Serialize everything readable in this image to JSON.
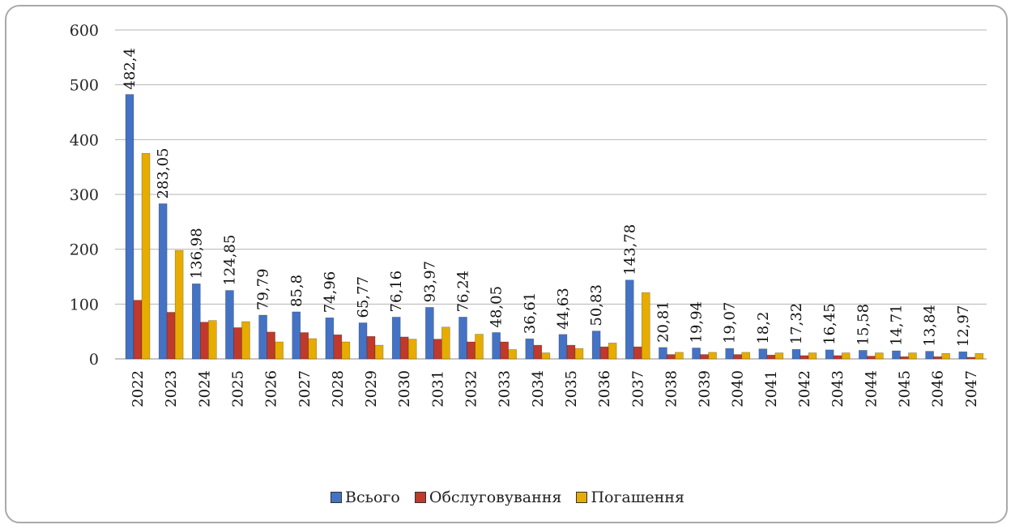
{
  "chart_data": {
    "type": "bar",
    "categories": [
      "2022",
      "2023",
      "2024",
      "2025",
      "2026",
      "2027",
      "2028",
      "2029",
      "2030",
      "2031",
      "2032",
      "2033",
      "2034",
      "2035",
      "2036",
      "2037",
      "2038",
      "2039",
      "2040",
      "2041",
      "2042",
      "2043",
      "2044",
      "2045",
      "2046",
      "2047"
    ],
    "series": [
      {
        "name": "Всього",
        "color": "#4472c4",
        "values": [
          482.4,
          283.05,
          136.98,
          124.85,
          79.79,
          85.8,
          74.96,
          65.77,
          76.16,
          93.97,
          76.24,
          48.05,
          36.61,
          44.63,
          50.83,
          143.78,
          20.81,
          19.94,
          19.07,
          18.2,
          17.32,
          16.45,
          15.58,
          14.71,
          13.84,
          12.97
        ],
        "labels": [
          "482,4",
          "283,05",
          "136,98",
          "124,85",
          "79,79",
          "85,8",
          "74,96",
          "65,77",
          "76,16",
          "93,97",
          "76,24",
          "48,05",
          "36,61",
          "44,63",
          "50,83",
          "143,78",
          "20,81",
          "19,94",
          "19,07",
          "18,2",
          "17,32",
          "16,45",
          "15,58",
          "14,71",
          "13,84",
          "12,97"
        ]
      },
      {
        "name": "Обслуговування",
        "color": "#c0392b",
        "values": [
          107,
          85,
          67,
          57,
          49,
          48,
          44,
          41,
          40,
          36,
          31,
          31,
          25,
          25,
          22,
          22,
          8,
          8,
          8,
          7,
          6,
          6,
          5,
          4,
          4,
          3
        ]
      },
      {
        "name": "Погашення",
        "color": "#e6ac00",
        "values": [
          375,
          198,
          70,
          68,
          31,
          37,
          31,
          25,
          36,
          58,
          45,
          17,
          11,
          19,
          29,
          121,
          12,
          12,
          12,
          11,
          11,
          11,
          11,
          11,
          10,
          10
        ]
      }
    ],
    "ylim": [
      0,
      600
    ],
    "yticks": [
      "0",
      "100",
      "200",
      "300",
      "400",
      "500",
      "600"
    ],
    "grid": true,
    "legend_position": "bottom"
  }
}
